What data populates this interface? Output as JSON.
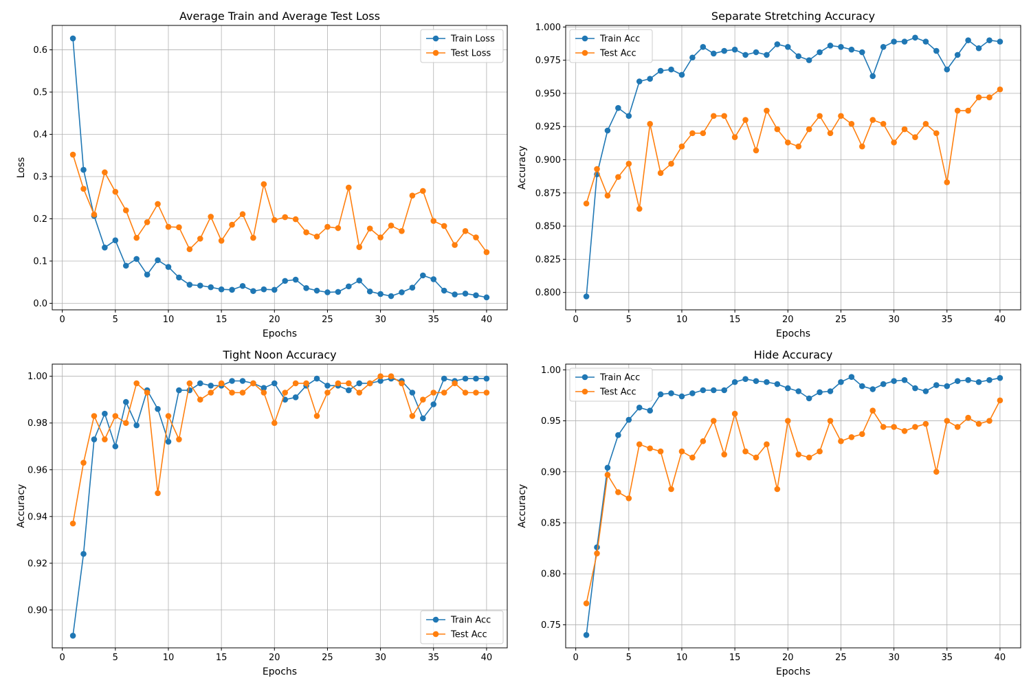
{
  "chart_data": [
    {
      "type": "line",
      "title": "Average Train and Average Test Loss",
      "xlabel": "Epochs",
      "ylabel": "Loss",
      "xlim": [
        -0.95,
        41.95
      ],
      "ylim": [
        -0.0155,
        0.6578
      ],
      "xticks": [
        0,
        5,
        10,
        15,
        20,
        25,
        30,
        35,
        40
      ],
      "xtick_labels": [
        "0",
        "5",
        "10",
        "15",
        "20",
        "25",
        "30",
        "35",
        "40"
      ],
      "yticks": [
        0.0,
        0.1,
        0.2,
        0.3,
        0.4,
        0.5,
        0.6
      ],
      "ytick_labels": [
        "0.0",
        "0.1",
        "0.2",
        "0.3",
        "0.4",
        "0.5",
        "0.6"
      ],
      "grid": true,
      "legend_position": "top-right",
      "x": [
        1,
        2,
        3,
        4,
        5,
        6,
        7,
        8,
        9,
        10,
        11,
        12,
        13,
        14,
        15,
        16,
        17,
        18,
        19,
        20,
        21,
        22,
        23,
        24,
        25,
        26,
        27,
        28,
        29,
        30,
        31,
        32,
        33,
        34,
        35,
        36,
        37,
        38,
        39,
        40
      ],
      "series": [
        {
          "name": "Train Loss",
          "color": "#1f77b4",
          "values": [
            0.627,
            0.316,
            0.207,
            0.132,
            0.149,
            0.089,
            0.105,
            0.068,
            0.102,
            0.086,
            0.061,
            0.044,
            0.042,
            0.038,
            0.033,
            0.032,
            0.041,
            0.029,
            0.033,
            0.032,
            0.053,
            0.056,
            0.036,
            0.03,
            0.026,
            0.027,
            0.04,
            0.054,
            0.028,
            0.022,
            0.017,
            0.026,
            0.037,
            0.066,
            0.057,
            0.03,
            0.021,
            0.023,
            0.019,
            0.014
          ]
        },
        {
          "name": "Test Loss",
          "color": "#ff7f0e",
          "values": [
            0.352,
            0.271,
            0.21,
            0.31,
            0.264,
            0.22,
            0.155,
            0.192,
            0.235,
            0.181,
            0.18,
            0.128,
            0.153,
            0.205,
            0.148,
            0.186,
            0.211,
            0.155,
            0.282,
            0.197,
            0.204,
            0.199,
            0.168,
            0.158,
            0.181,
            0.178,
            0.274,
            0.133,
            0.177,
            0.156,
            0.184,
            0.171,
            0.255,
            0.266,
            0.195,
            0.183,
            0.138,
            0.171,
            0.156,
            0.121
          ]
        }
      ]
    },
    {
      "type": "line",
      "title": "Separate Stretching Accuracy",
      "xlabel": "Epochs",
      "ylabel": "Accuracy",
      "xlim": [
        -0.95,
        41.95
      ],
      "ylim": [
        0.7869,
        1.0012
      ],
      "xticks": [
        0,
        5,
        10,
        15,
        20,
        25,
        30,
        35,
        40
      ],
      "xtick_labels": [
        "0",
        "5",
        "10",
        "15",
        "20",
        "25",
        "30",
        "35",
        "40"
      ],
      "yticks": [
        0.8,
        0.825,
        0.85,
        0.875,
        0.9,
        0.925,
        0.95,
        0.975,
        1.0
      ],
      "ytick_labels": [
        "0.800",
        "0.825",
        "0.850",
        "0.875",
        "0.900",
        "0.925",
        "0.950",
        "0.975",
        "1.000"
      ],
      "grid": true,
      "legend_position": "top-left",
      "x": [
        1,
        2,
        3,
        4,
        5,
        6,
        7,
        8,
        9,
        10,
        11,
        12,
        13,
        14,
        15,
        16,
        17,
        18,
        19,
        20,
        21,
        22,
        23,
        24,
        25,
        26,
        27,
        28,
        29,
        30,
        31,
        32,
        33,
        34,
        35,
        36,
        37,
        38,
        39,
        40
      ],
      "series": [
        {
          "name": "Train Acc",
          "color": "#1f77b4",
          "values": [
            0.797,
            0.889,
            0.922,
            0.939,
            0.933,
            0.959,
            0.961,
            0.967,
            0.968,
            0.964,
            0.977,
            0.985,
            0.98,
            0.982,
            0.983,
            0.979,
            0.981,
            0.979,
            0.987,
            0.985,
            0.978,
            0.975,
            0.981,
            0.986,
            0.985,
            0.983,
            0.981,
            0.963,
            0.985,
            0.989,
            0.989,
            0.992,
            0.989,
            0.982,
            0.968,
            0.979,
            0.99,
            0.984,
            0.99,
            0.989
          ]
        },
        {
          "name": "Test Acc",
          "color": "#ff7f0e",
          "values": [
            0.867,
            0.893,
            0.873,
            0.887,
            0.897,
            0.863,
            0.927,
            0.89,
            0.897,
            0.91,
            0.92,
            0.92,
            0.933,
            0.933,
            0.917,
            0.93,
            0.907,
            0.937,
            0.923,
            0.913,
            0.91,
            0.923,
            0.933,
            0.92,
            0.933,
            0.927,
            0.91,
            0.93,
            0.927,
            0.913,
            0.923,
            0.917,
            0.927,
            0.92,
            0.883,
            0.937,
            0.937,
            0.947,
            0.947,
            0.953
          ]
        }
      ]
    },
    {
      "type": "line",
      "title": "Tight Noon Accuracy",
      "xlabel": "Epochs",
      "ylabel": "Accuracy",
      "xlim": [
        -0.95,
        41.95
      ],
      "ylim": [
        0.8838,
        1.0052
      ],
      "xticks": [
        0,
        5,
        10,
        15,
        20,
        25,
        30,
        35,
        40
      ],
      "xtick_labels": [
        "0",
        "5",
        "10",
        "15",
        "20",
        "25",
        "30",
        "35",
        "40"
      ],
      "yticks": [
        0.9,
        0.92,
        0.94,
        0.96,
        0.98,
        1.0
      ],
      "ytick_labels": [
        "0.90",
        "0.92",
        "0.94",
        "0.96",
        "0.98",
        "1.00"
      ],
      "grid": true,
      "legend_position": "bottom-right",
      "x": [
        1,
        2,
        3,
        4,
        5,
        6,
        7,
        8,
        9,
        10,
        11,
        12,
        13,
        14,
        15,
        16,
        17,
        18,
        19,
        20,
        21,
        22,
        23,
        24,
        25,
        26,
        27,
        28,
        29,
        30,
        31,
        32,
        33,
        34,
        35,
        36,
        37,
        38,
        39,
        40
      ],
      "series": [
        {
          "name": "Train Acc",
          "color": "#1f77b4",
          "values": [
            0.889,
            0.924,
            0.973,
            0.984,
            0.97,
            0.989,
            0.979,
            0.994,
            0.986,
            0.972,
            0.994,
            0.994,
            0.997,
            0.996,
            0.996,
            0.998,
            0.998,
            0.997,
            0.995,
            0.997,
            0.99,
            0.991,
            0.996,
            0.999,
            0.996,
            0.996,
            0.994,
            0.997,
            0.997,
            0.998,
            0.999,
            0.998,
            0.993,
            0.982,
            0.988,
            0.999,
            0.998,
            0.999,
            0.999,
            0.999
          ]
        },
        {
          "name": "Test Acc",
          "color": "#ff7f0e",
          "values": [
            0.937,
            0.963,
            0.983,
            0.973,
            0.983,
            0.98,
            0.997,
            0.993,
            0.95,
            0.983,
            0.973,
            0.997,
            0.99,
            0.993,
            0.997,
            0.993,
            0.993,
            0.997,
            0.993,
            0.98,
            0.993,
            0.997,
            0.997,
            0.983,
            0.993,
            0.997,
            0.997,
            0.993,
            0.997,
            1.0,
            1.0,
            0.997,
            0.983,
            0.99,
            0.993,
            0.993,
            0.997,
            0.993,
            0.993,
            0.993
          ]
        }
      ]
    },
    {
      "type": "line",
      "title": "Hide Accuracy",
      "xlabel": "Epochs",
      "ylabel": "Accuracy",
      "xlim": [
        -0.95,
        41.95
      ],
      "ylim": [
        0.7274,
        1.0056
      ],
      "xticks": [
        0,
        5,
        10,
        15,
        20,
        25,
        30,
        35,
        40
      ],
      "xtick_labels": [
        "0",
        "5",
        "10",
        "15",
        "20",
        "25",
        "30",
        "35",
        "40"
      ],
      "yticks": [
        0.75,
        0.8,
        0.85,
        0.9,
        0.95,
        1.0
      ],
      "ytick_labels": [
        "0.75",
        "0.80",
        "0.85",
        "0.90",
        "0.95",
        "1.00"
      ],
      "grid": true,
      "legend_position": "top-left",
      "x": [
        1,
        2,
        3,
        4,
        5,
        6,
        7,
        8,
        9,
        10,
        11,
        12,
        13,
        14,
        15,
        16,
        17,
        18,
        19,
        20,
        21,
        22,
        23,
        24,
        25,
        26,
        27,
        28,
        29,
        30,
        31,
        32,
        33,
        34,
        35,
        36,
        37,
        38,
        39,
        40
      ],
      "series": [
        {
          "name": "Train Acc",
          "color": "#1f77b4",
          "values": [
            0.74,
            0.826,
            0.904,
            0.936,
            0.951,
            0.963,
            0.96,
            0.976,
            0.977,
            0.974,
            0.977,
            0.98,
            0.98,
            0.98,
            0.988,
            0.991,
            0.989,
            0.988,
            0.986,
            0.982,
            0.979,
            0.972,
            0.978,
            0.979,
            0.988,
            0.993,
            0.984,
            0.981,
            0.986,
            0.989,
            0.99,
            0.982,
            0.979,
            0.985,
            0.984,
            0.989,
            0.99,
            0.988,
            0.99,
            0.992
          ]
        },
        {
          "name": "Test Acc",
          "color": "#ff7f0e",
          "values": [
            0.771,
            0.82,
            0.897,
            0.88,
            0.874,
            0.927,
            0.923,
            0.92,
            0.883,
            0.92,
            0.914,
            0.93,
            0.95,
            0.917,
            0.957,
            0.92,
            0.914,
            0.927,
            0.883,
            0.95,
            0.917,
            0.914,
            0.92,
            0.95,
            0.93,
            0.934,
            0.937,
            0.96,
            0.944,
            0.944,
            0.94,
            0.944,
            0.947,
            0.9,
            0.95,
            0.944,
            0.953,
            0.947,
            0.95,
            0.97
          ]
        }
      ]
    }
  ]
}
